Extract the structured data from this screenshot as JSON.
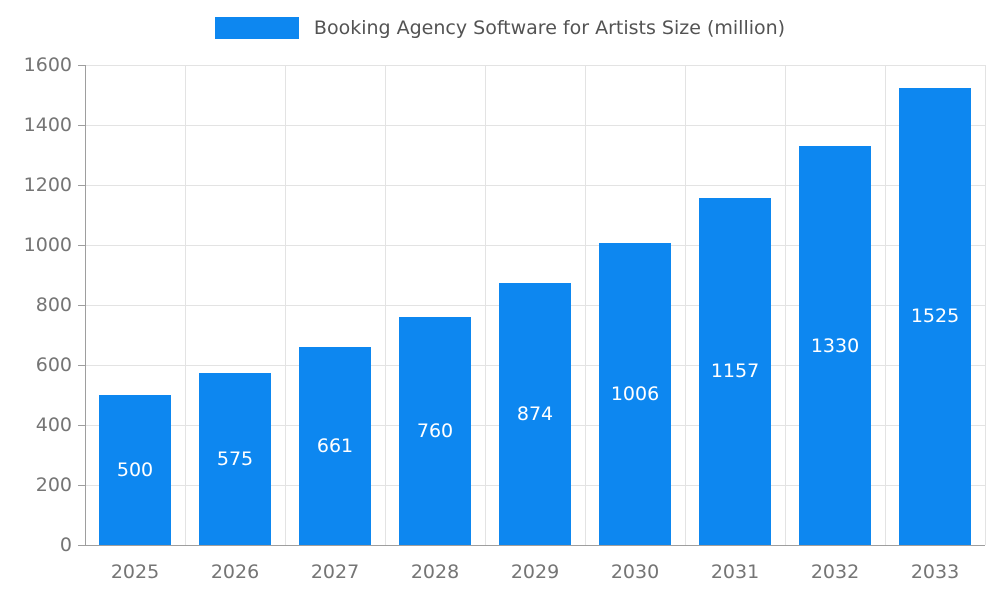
{
  "chart_data": {
    "type": "bar",
    "title": "Booking Agency Software for Artists Size (million)",
    "categories": [
      "2025",
      "2026",
      "2027",
      "2028",
      "2029",
      "2030",
      "2031",
      "2032",
      "2033"
    ],
    "values": [
      500,
      575,
      661,
      760,
      874,
      1006,
      1157,
      1330,
      1525
    ],
    "xlabel": "",
    "ylabel": "",
    "ylim": [
      0,
      1600
    ],
    "yticks": [
      0,
      200,
      400,
      600,
      800,
      1000,
      1200,
      1400,
      1600
    ],
    "grid": true,
    "legend_position": "top",
    "colors": {
      "bar": "#0d87f0",
      "grid": "#e3e3e3",
      "axis": "#9e9e9e",
      "tick_label": "#757575",
      "title": "#535353",
      "value_label": "#ffffff"
    }
  }
}
